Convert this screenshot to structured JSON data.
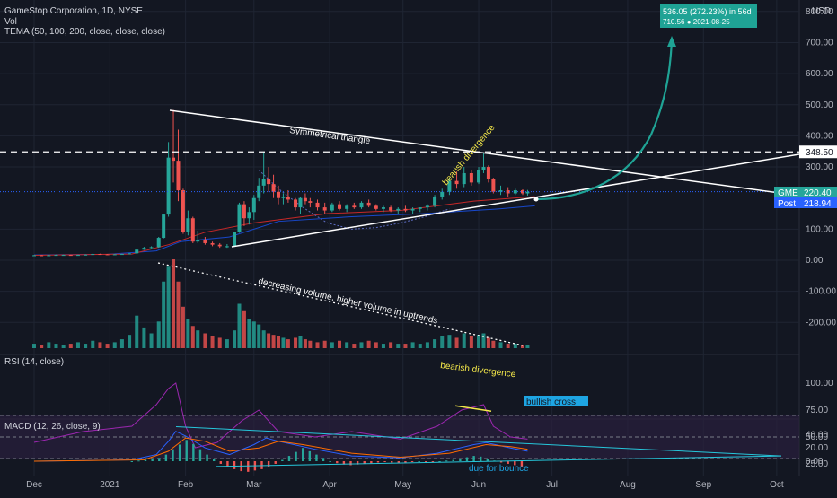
{
  "header": {
    "symbol_line": "GameStop Corporation, 1D, NYSE",
    "vol_label": "Vol",
    "tema_label": "TEMA (50, 100, 200, close, close, close)",
    "currency": "USD"
  },
  "colors": {
    "background": "#131722",
    "grid": "#1f2533",
    "up": "#26a69a",
    "down": "#ef5350",
    "projection": "#1fa395",
    "rsi_line": "#9c27b0",
    "annotation_yellow": "#f5e94a",
    "macd_line": "#2962ff",
    "signal_line": "#ff6d00",
    "trend_cyan": "#26c6da",
    "label_blue": "#1ea5e3"
  },
  "chart_data": [
    {
      "type": "candlestick",
      "name": "GME price",
      "ylim": [
        -260,
        820
      ],
      "y_ticks": [
        "800.00",
        "700.00",
        "600.00",
        "500.00",
        "400.00",
        "300.00",
        "100.00",
        "0.00",
        "-100.00",
        "-200.00"
      ],
      "y_tick_values": [
        800,
        700,
        600,
        500,
        400,
        300,
        100,
        0,
        -100,
        -200
      ],
      "x_labels": [
        "Dec",
        "2021",
        "Feb",
        "Mar",
        "Apr",
        "May",
        "Jun",
        "Jul",
        "Aug",
        "Sep",
        "Oct"
      ],
      "x_label_days": [
        0,
        31,
        62,
        90,
        121,
        151,
        182,
        212,
        243,
        274,
        304
      ],
      "candles": [
        {
          "d": 0,
          "o": 16,
          "h": 17,
          "l": 15,
          "c": 16
        },
        {
          "d": 3,
          "o": 16,
          "h": 17,
          "l": 14,
          "c": 15
        },
        {
          "d": 6,
          "o": 15,
          "h": 17,
          "l": 14,
          "c": 16
        },
        {
          "d": 9,
          "o": 16,
          "h": 18,
          "l": 15,
          "c": 17
        },
        {
          "d": 12,
          "o": 17,
          "h": 18,
          "l": 16,
          "c": 17
        },
        {
          "d": 15,
          "o": 17,
          "h": 18,
          "l": 15,
          "c": 16
        },
        {
          "d": 18,
          "o": 16,
          "h": 18,
          "l": 15,
          "c": 17
        },
        {
          "d": 21,
          "o": 17,
          "h": 19,
          "l": 16,
          "c": 18
        },
        {
          "d": 24,
          "o": 18,
          "h": 21,
          "l": 18,
          "c": 20
        },
        {
          "d": 27,
          "o": 20,
          "h": 21,
          "l": 18,
          "c": 19
        },
        {
          "d": 30,
          "o": 19,
          "h": 20,
          "l": 17,
          "c": 18
        },
        {
          "d": 33,
          "o": 18,
          "h": 20,
          "l": 17,
          "c": 19
        },
        {
          "d": 36,
          "o": 19,
          "h": 21,
          "l": 18,
          "c": 20
        },
        {
          "d": 39,
          "o": 20,
          "h": 23,
          "l": 19,
          "c": 22
        },
        {
          "d": 42,
          "o": 22,
          "h": 35,
          "l": 21,
          "c": 34
        },
        {
          "d": 45,
          "o": 34,
          "h": 43,
          "l": 33,
          "c": 40
        },
        {
          "d": 48,
          "o": 40,
          "h": 45,
          "l": 38,
          "c": 42
        },
        {
          "d": 51,
          "o": 42,
          "h": 75,
          "l": 40,
          "c": 72
        },
        {
          "d": 53,
          "o": 72,
          "h": 150,
          "l": 70,
          "c": 147
        },
        {
          "d": 55,
          "o": 147,
          "h": 380,
          "l": 140,
          "c": 330
        },
        {
          "d": 57,
          "o": 330,
          "h": 483,
          "l": 250,
          "c": 320
        },
        {
          "d": 59,
          "o": 320,
          "h": 420,
          "l": 190,
          "c": 225
        },
        {
          "d": 61,
          "o": 225,
          "h": 230,
          "l": 85,
          "c": 90
        },
        {
          "d": 63,
          "o": 90,
          "h": 160,
          "l": 80,
          "c": 135
        },
        {
          "d": 65,
          "o": 135,
          "h": 140,
          "l": 55,
          "c": 60
        },
        {
          "d": 67,
          "o": 60,
          "h": 95,
          "l": 55,
          "c": 65
        },
        {
          "d": 70,
          "o": 65,
          "h": 75,
          "l": 50,
          "c": 55
        },
        {
          "d": 73,
          "o": 55,
          "h": 60,
          "l": 45,
          "c": 50
        },
        {
          "d": 76,
          "o": 50,
          "h": 55,
          "l": 40,
          "c": 45
        },
        {
          "d": 79,
          "o": 45,
          "h": 52,
          "l": 40,
          "c": 45
        },
        {
          "d": 82,
          "o": 45,
          "h": 92,
          "l": 44,
          "c": 91
        },
        {
          "d": 84,
          "o": 91,
          "h": 185,
          "l": 88,
          "c": 180
        },
        {
          "d": 86,
          "o": 180,
          "h": 190,
          "l": 110,
          "c": 135
        },
        {
          "d": 88,
          "o": 135,
          "h": 170,
          "l": 115,
          "c": 155
        },
        {
          "d": 90,
          "o": 155,
          "h": 210,
          "l": 130,
          "c": 200
        },
        {
          "d": 92,
          "o": 200,
          "h": 265,
          "l": 190,
          "c": 240
        },
        {
          "d": 94,
          "o": 240,
          "h": 348,
          "l": 215,
          "c": 260
        },
        {
          "d": 96,
          "o": 260,
          "h": 300,
          "l": 220,
          "c": 245
        },
        {
          "d": 98,
          "o": 245,
          "h": 275,
          "l": 200,
          "c": 220
        },
        {
          "d": 100,
          "o": 220,
          "h": 240,
          "l": 180,
          "c": 200
        },
        {
          "d": 102,
          "o": 200,
          "h": 215,
          "l": 180,
          "c": 205
        },
        {
          "d": 104,
          "o": 205,
          "h": 225,
          "l": 185,
          "c": 195
        },
        {
          "d": 107,
          "o": 195,
          "h": 200,
          "l": 160,
          "c": 170
        },
        {
          "d": 109,
          "o": 170,
          "h": 205,
          "l": 150,
          "c": 200
        },
        {
          "d": 111,
          "o": 200,
          "h": 215,
          "l": 180,
          "c": 190
        },
        {
          "d": 113,
          "o": 190,
          "h": 200,
          "l": 170,
          "c": 185
        },
        {
          "d": 116,
          "o": 185,
          "h": 195,
          "l": 160,
          "c": 170
        },
        {
          "d": 119,
          "o": 170,
          "h": 185,
          "l": 150,
          "c": 160
        },
        {
          "d": 122,
          "o": 160,
          "h": 185,
          "l": 155,
          "c": 180
        },
        {
          "d": 125,
          "o": 180,
          "h": 190,
          "l": 160,
          "c": 165
        },
        {
          "d": 128,
          "o": 165,
          "h": 180,
          "l": 155,
          "c": 175
        },
        {
          "d": 131,
          "o": 175,
          "h": 185,
          "l": 165,
          "c": 170
        },
        {
          "d": 134,
          "o": 170,
          "h": 190,
          "l": 165,
          "c": 185
        },
        {
          "d": 137,
          "o": 185,
          "h": 195,
          "l": 170,
          "c": 175
        },
        {
          "d": 140,
          "o": 175,
          "h": 180,
          "l": 160,
          "c": 165
        },
        {
          "d": 143,
          "o": 165,
          "h": 175,
          "l": 155,
          "c": 170
        },
        {
          "d": 146,
          "o": 170,
          "h": 175,
          "l": 155,
          "c": 160
        },
        {
          "d": 149,
          "o": 160,
          "h": 170,
          "l": 150,
          "c": 165
        },
        {
          "d": 152,
          "o": 165,
          "h": 175,
          "l": 155,
          "c": 160
        },
        {
          "d": 155,
          "o": 160,
          "h": 170,
          "l": 150,
          "c": 165
        },
        {
          "d": 158,
          "o": 165,
          "h": 170,
          "l": 155,
          "c": 170
        },
        {
          "d": 161,
          "o": 170,
          "h": 180,
          "l": 160,
          "c": 175
        },
        {
          "d": 164,
          "o": 175,
          "h": 210,
          "l": 170,
          "c": 205
        },
        {
          "d": 167,
          "o": 205,
          "h": 230,
          "l": 195,
          "c": 220
        },
        {
          "d": 170,
          "o": 220,
          "h": 265,
          "l": 210,
          "c": 255
        },
        {
          "d": 173,
          "o": 255,
          "h": 285,
          "l": 230,
          "c": 245
        },
        {
          "d": 176,
          "o": 245,
          "h": 300,
          "l": 235,
          "c": 280
        },
        {
          "d": 179,
          "o": 280,
          "h": 290,
          "l": 240,
          "c": 250
        },
        {
          "d": 182,
          "o": 250,
          "h": 300,
          "l": 245,
          "c": 290
        },
        {
          "d": 184,
          "o": 290,
          "h": 344,
          "l": 280,
          "c": 300
        },
        {
          "d": 186,
          "o": 300,
          "h": 305,
          "l": 250,
          "c": 260
        },
        {
          "d": 188,
          "o": 260,
          "h": 265,
          "l": 215,
          "c": 220
        },
        {
          "d": 191,
          "o": 220,
          "h": 240,
          "l": 210,
          "c": 225
        },
        {
          "d": 194,
          "o": 225,
          "h": 235,
          "l": 205,
          "c": 215
        },
        {
          "d": 197,
          "o": 215,
          "h": 230,
          "l": 210,
          "c": 225
        },
        {
          "d": 200,
          "o": 225,
          "h": 228,
          "l": 210,
          "c": 215
        },
        {
          "d": 202,
          "o": 215,
          "h": 226,
          "l": 208,
          "c": 220
        }
      ],
      "annotations": {
        "triangle_label": "Symmetrical triangle",
        "bearish_label": "bearish divergence",
        "volume_label": "decreasing volume, higher volume in uptrends",
        "resistance_label": "348.50",
        "resistance_value": 348.5,
        "gme_label": "GME",
        "gme_value": "220.40",
        "post_label": "Post",
        "post_value": "218.94",
        "target_line1": "536.05 (272.23%) in 56d",
        "target_line2": "710.56 ● 2021-08-25",
        "target_price": 710.56
      }
    },
    {
      "type": "bar",
      "name": "Vol",
      "values": [
        3,
        2,
        4,
        3,
        2,
        3,
        4,
        3,
        5,
        4,
        3,
        4,
        6,
        9,
        22,
        14,
        10,
        18,
        45,
        55,
        60,
        45,
        28,
        20,
        15,
        12,
        10,
        8,
        7,
        6,
        12,
        30,
        25,
        20,
        18,
        16,
        12,
        10,
        9,
        8,
        7,
        6,
        7,
        8,
        6,
        5,
        4,
        5,
        4,
        5,
        4,
        3,
        4,
        5,
        4,
        3,
        4,
        3,
        3,
        4,
        3,
        4,
        6,
        8,
        9,
        7,
        10,
        8,
        9,
        10,
        7,
        5,
        4,
        3,
        3,
        2,
        2
      ]
    },
    {
      "type": "line",
      "name": "RSI (14, close)",
      "ylim": [
        20,
        105
      ],
      "y_ticks": [
        "100.00",
        "75.00",
        "50.00",
        "25.00"
      ],
      "y_tick_values": [
        100,
        75,
        50,
        25
      ],
      "annotations": {
        "bearish_label": "bearish divergence",
        "cross_label": "bullish cross"
      }
    },
    {
      "type": "line",
      "name": "MACD (12, 26, close, 9)",
      "ylim": [
        -20,
        70
      ],
      "y_ticks": [
        "40.00",
        "20.00",
        "0.00"
      ],
      "y_tick_values": [
        40,
        20,
        0
      ],
      "annotations": {
        "bounce_label": "due for bounce"
      }
    }
  ]
}
